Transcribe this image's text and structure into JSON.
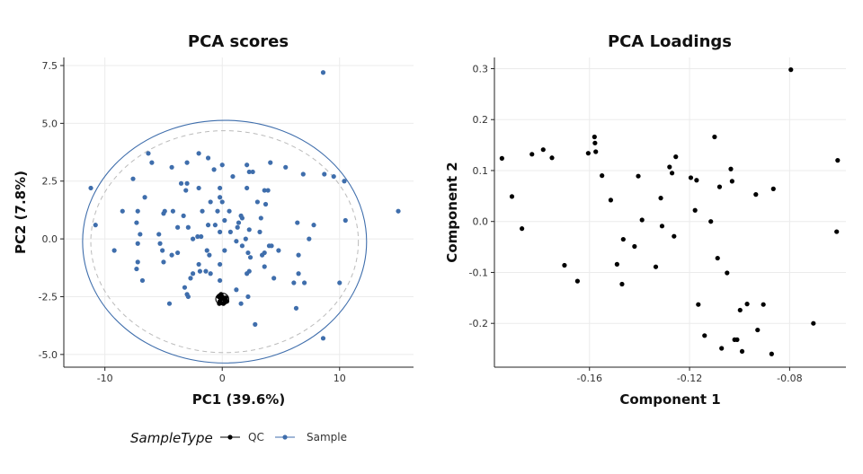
{
  "colors": {
    "qc": "#000000",
    "sample": "#3f6eac",
    "ellipse_dashed": "#bbbbbb"
  },
  "legend": {
    "title": "SampleType",
    "items": [
      {
        "label": "QC",
        "color": "#000000"
      },
      {
        "label": "Sample",
        "color": "#3f6eac"
      }
    ]
  },
  "chart_data": [
    {
      "type": "scatter",
      "title": "PCA scores",
      "xlabel": "PC1 (39.6%)",
      "ylabel": "PC2 (7.8%)",
      "xlim": [
        -13.5,
        16.3
      ],
      "ylim": [
        -5.55,
        7.85
      ],
      "xticks": [
        -10,
        0,
        10
      ],
      "xtick_labels": [
        "-10",
        "0",
        "10"
      ],
      "yticks": [
        -5,
        -2.5,
        0,
        2.5,
        5,
        7.5
      ],
      "ytick_labels": [
        "-5.0",
        "-2.5",
        "0.0",
        "2.5",
        "5.0",
        "7.5"
      ],
      "grid": true,
      "ellipses": [
        {
          "name": "Sample",
          "style": "solid",
          "color": "#3f6eac",
          "center": [
            0.2,
            -0.12
          ],
          "rx": 12.1,
          "ry": 5.25
        },
        {
          "name": "Sample",
          "style": "dashed",
          "color": "#bbbbbb",
          "center": [
            0.2,
            -0.12
          ],
          "rx": 11.4,
          "ry": 4.8
        },
        {
          "name": "QC",
          "style": "solid",
          "color": "#000000",
          "center": [
            0.0,
            -2.6
          ],
          "rx": 0.55,
          "ry": 0.25
        }
      ],
      "series": [
        {
          "name": "Sample",
          "color": "#3f6eac",
          "points": [
            [
              8.6,
              7.2
            ],
            [
              -6.3,
              3.7
            ],
            [
              -2.0,
              3.7
            ],
            [
              -1.2,
              3.5
            ],
            [
              -6.0,
              3.3
            ],
            [
              -3.0,
              3.3
            ],
            [
              -4.3,
              3.1
            ],
            [
              0.0,
              3.2
            ],
            [
              2.1,
              3.2
            ],
            [
              4.1,
              3.3
            ],
            [
              5.4,
              3.1
            ],
            [
              -0.7,
              3.0
            ],
            [
              2.3,
              2.9
            ],
            [
              2.6,
              2.9
            ],
            [
              6.9,
              2.8
            ],
            [
              8.7,
              2.8
            ],
            [
              9.5,
              2.7
            ],
            [
              10.4,
              2.5
            ],
            [
              -7.6,
              2.6
            ],
            [
              -3.5,
              2.4
            ],
            [
              -3.0,
              2.4
            ],
            [
              -2.0,
              2.2
            ],
            [
              -0.2,
              2.2
            ],
            [
              2.1,
              2.2
            ],
            [
              3.6,
              2.1
            ],
            [
              3.9,
              2.1
            ],
            [
              -11.2,
              2.2
            ],
            [
              -3.1,
              2.1
            ],
            [
              -6.6,
              1.8
            ],
            [
              -0.2,
              1.8
            ],
            [
              0.9,
              2.7
            ],
            [
              3.0,
              1.6
            ],
            [
              3.7,
              1.5
            ],
            [
              0.0,
              1.6
            ],
            [
              -1.0,
              1.6
            ],
            [
              -4.2,
              1.2
            ],
            [
              -4.9,
              1.2
            ],
            [
              -7.2,
              1.2
            ],
            [
              -8.5,
              1.2
            ],
            [
              -5.0,
              1.1
            ],
            [
              -3.3,
              1.0
            ],
            [
              -1.7,
              1.2
            ],
            [
              -0.4,
              1.2
            ],
            [
              0.6,
              1.2
            ],
            [
              1.6,
              1.0
            ],
            [
              1.7,
              0.9
            ],
            [
              3.3,
              0.9
            ],
            [
              -7.3,
              0.7
            ],
            [
              -10.8,
              0.6
            ],
            [
              -1.2,
              0.6
            ],
            [
              -0.6,
              0.6
            ],
            [
              0.2,
              0.8
            ],
            [
              1.4,
              0.7
            ],
            [
              6.4,
              0.7
            ],
            [
              7.8,
              0.6
            ],
            [
              10.5,
              0.8
            ],
            [
              15.0,
              1.2
            ],
            [
              -3.8,
              0.5
            ],
            [
              -2.9,
              0.5
            ],
            [
              -0.2,
              0.3
            ],
            [
              0.7,
              0.3
            ],
            [
              1.3,
              0.5
            ],
            [
              2.3,
              0.4
            ],
            [
              3.2,
              0.3
            ],
            [
              -1.8,
              0.1
            ],
            [
              -2.5,
              0.0
            ],
            [
              -5.4,
              0.2
            ],
            [
              -7.0,
              0.2
            ],
            [
              -2.1,
              0.1
            ],
            [
              1.2,
              -0.1
            ],
            [
              2.0,
              0.0
            ],
            [
              7.4,
              0.0
            ],
            [
              -5.3,
              -0.2
            ],
            [
              -7.2,
              -0.2
            ],
            [
              1.7,
              -0.3
            ],
            [
              4.0,
              -0.3
            ],
            [
              4.2,
              -0.3
            ],
            [
              -9.2,
              -0.5
            ],
            [
              -5.1,
              -0.5
            ],
            [
              -3.8,
              -0.6
            ],
            [
              -1.3,
              -0.5
            ],
            [
              0.2,
              -0.5
            ],
            [
              2.2,
              -0.6
            ],
            [
              3.6,
              -0.6
            ],
            [
              4.8,
              -0.5
            ],
            [
              -4.3,
              -0.7
            ],
            [
              -7.2,
              -1.0
            ],
            [
              -5.0,
              -1.0
            ],
            [
              -1.1,
              -0.7
            ],
            [
              3.4,
              -0.7
            ],
            [
              2.4,
              -0.8
            ],
            [
              6.5,
              -0.7
            ],
            [
              -7.3,
              -1.3
            ],
            [
              -2.0,
              -1.1
            ],
            [
              -0.2,
              -1.1
            ],
            [
              3.6,
              -1.2
            ],
            [
              -1.9,
              -1.4
            ],
            [
              -1.4,
              -1.4
            ],
            [
              -1.0,
              -1.5
            ],
            [
              -2.5,
              -1.5
            ],
            [
              2.3,
              -1.4
            ],
            [
              2.1,
              -1.5
            ],
            [
              6.5,
              -1.5
            ],
            [
              -2.7,
              -1.7
            ],
            [
              -6.8,
              -1.8
            ],
            [
              -0.2,
              -1.8
            ],
            [
              4.4,
              -1.7
            ],
            [
              6.1,
              -1.9
            ],
            [
              7.0,
              -1.9
            ],
            [
              10.0,
              -1.9
            ],
            [
              -3.2,
              -2.1
            ],
            [
              1.2,
              -2.2
            ],
            [
              -3.0,
              -2.4
            ],
            [
              -2.9,
              -2.5
            ],
            [
              2.2,
              -2.5
            ],
            [
              -4.5,
              -2.8
            ],
            [
              1.6,
              -2.8
            ],
            [
              6.3,
              -3.0
            ],
            [
              2.8,
              -3.7
            ],
            [
              8.6,
              -4.3
            ]
          ]
        },
        {
          "name": "QC",
          "color": "#000000",
          "points": [
            [
              -0.3,
              -2.5
            ],
            [
              -0.1,
              -2.4
            ],
            [
              0.1,
              -2.6
            ],
            [
              0.3,
              -2.55
            ],
            [
              0.2,
              -2.75
            ],
            [
              -0.2,
              -2.7
            ],
            [
              0.0,
              -2.5
            ],
            [
              0.25,
              -2.65
            ],
            [
              -0.15,
              -2.55
            ],
            [
              0.1,
              -2.8
            ],
            [
              0.4,
              -2.7
            ],
            [
              -0.25,
              -2.8
            ]
          ]
        }
      ]
    },
    {
      "type": "scatter",
      "title": "PCA Loadings",
      "xlabel": "Component 1",
      "ylabel": "Component 2",
      "xlim": [
        -0.198,
        -0.0575
      ],
      "ylim": [
        -0.286,
        0.322
      ],
      "xticks": [
        -0.16,
        -0.12,
        -0.08
      ],
      "xtick_labels": [
        "-0.16",
        "-0.12",
        "-0.08"
      ],
      "yticks": [
        -0.2,
        -0.1,
        0.0,
        0.1,
        0.2,
        0.3
      ],
      "ytick_labels": [
        "-0.2",
        "-0.1",
        "0.0",
        "0.1",
        "0.2",
        "0.3"
      ],
      "grid": true,
      "series": [
        {
          "name": "",
          "color": "#000000",
          "points": [
            [
              -0.195,
              0.124
            ],
            [
              -0.191,
              0.049
            ],
            [
              -0.187,
              -0.014
            ],
            [
              -0.183,
              0.132
            ],
            [
              -0.1785,
              0.141
            ],
            [
              -0.175,
              0.125
            ],
            [
              -0.17,
              -0.086
            ],
            [
              -0.1648,
              -0.117
            ],
            [
              -0.1605,
              0.134
            ],
            [
              -0.158,
              0.166
            ],
            [
              -0.1578,
              0.154
            ],
            [
              -0.1575,
              0.137
            ],
            [
              -0.155,
              0.09
            ],
            [
              -0.1515,
              0.042
            ],
            [
              -0.149,
              -0.084
            ],
            [
              -0.147,
              -0.123
            ],
            [
              -0.1465,
              -0.035
            ],
            [
              -0.142,
              -0.049
            ],
            [
              -0.1405,
              0.089
            ],
            [
              -0.139,
              0.003
            ],
            [
              -0.1335,
              -0.089
            ],
            [
              -0.1315,
              0.046
            ],
            [
              -0.131,
              -0.009
            ],
            [
              -0.128,
              0.107
            ],
            [
              -0.127,
              0.095
            ],
            [
              -0.1262,
              -0.029
            ],
            [
              -0.1255,
              0.127
            ],
            [
              -0.1195,
              0.086
            ],
            [
              -0.1178,
              0.022
            ],
            [
              -0.1172,
              0.081
            ],
            [
              -0.1165,
              -0.163
            ],
            [
              -0.1115,
              0.0
            ],
            [
              -0.11,
              0.166
            ],
            [
              -0.1088,
              -0.072
            ],
            [
              -0.108,
              0.068
            ],
            [
              -0.1072,
              -0.249
            ],
            [
              -0.105,
              -0.101
            ],
            [
              -0.1035,
              0.103
            ],
            [
              -0.103,
              0.079
            ],
            [
              -0.102,
              -0.232
            ],
            [
              -0.101,
              -0.232
            ],
            [
              -0.0998,
              -0.174
            ],
            [
              -0.099,
              -0.255
            ],
            [
              -0.097,
              -0.162
            ],
            [
              -0.0935,
              0.053
            ],
            [
              -0.0928,
              -0.213
            ],
            [
              -0.0905,
              -0.163
            ],
            [
              -0.0865,
              0.064
            ],
            [
              -0.0872,
              -0.26
            ],
            [
              -0.0795,
              0.298
            ],
            [
              -0.0705,
              -0.2
            ],
            [
              -0.0608,
              0.12
            ],
            [
              -0.0612,
              -0.02
            ],
            [
              -0.114,
              -0.224
            ]
          ]
        }
      ]
    }
  ]
}
